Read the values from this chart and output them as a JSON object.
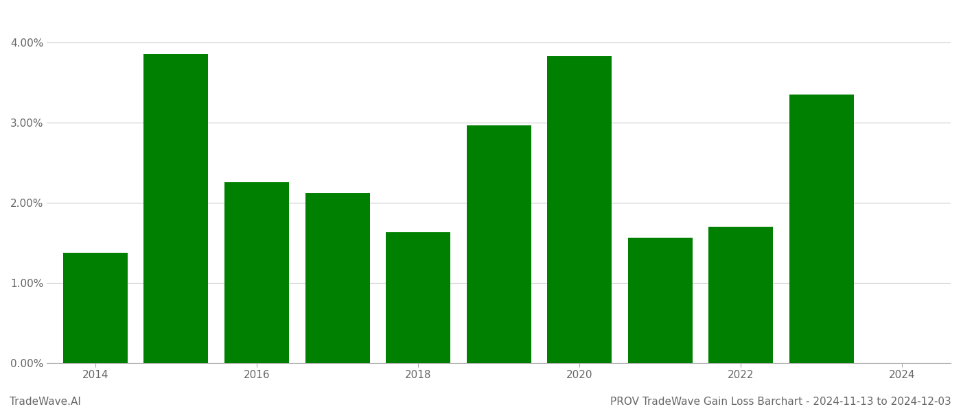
{
  "years": [
    2014,
    2015,
    2016,
    2017,
    2018,
    2019,
    2020,
    2021,
    2022,
    2023
  ],
  "values": [
    0.0137,
    0.0385,
    0.0225,
    0.0212,
    0.0163,
    0.0296,
    0.0383,
    0.0156,
    0.017,
    0.0335
  ],
  "bar_color": "#008000",
  "background_color": "#ffffff",
  "grid_color": "#cccccc",
  "title": "PROV TradeWave Gain Loss Barchart - 2024-11-13 to 2024-12-03",
  "watermark": "TradeWave.AI",
  "ylim": [
    0,
    0.044
  ],
  "ytick_values": [
    0.0,
    0.01,
    0.02,
    0.03,
    0.04
  ],
  "tick_label_fontsize": 11,
  "title_fontsize": 11,
  "watermark_fontsize": 11,
  "tick_label_color": "#666666",
  "title_color": "#666666",
  "watermark_color": "#666666",
  "xtick_positions": [
    2014,
    2016,
    2018,
    2020,
    2022,
    2024
  ],
  "xtick_labels": [
    "2014",
    "2016",
    "2018",
    "2020",
    "2022",
    "2024"
  ],
  "xlim": [
    2013.4,
    2024.6
  ],
  "bar_width": 0.8
}
